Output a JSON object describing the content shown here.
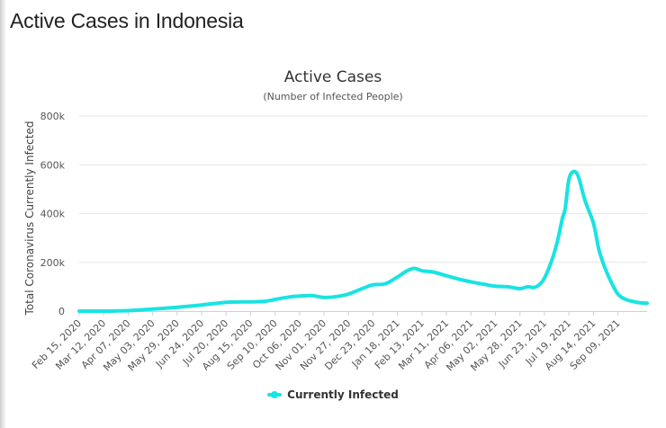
{
  "page": {
    "heading": "Active Cases in Indonesia"
  },
  "colors": {
    "series": "#19e3e3",
    "grid": "#e6e6e6",
    "axis": "#c8d1e0"
  },
  "legend": {
    "label": "Currently Infected",
    "position": "bottom-center"
  },
  "chart_data": {
    "type": "line",
    "title": "Active Cases",
    "subtitle": "(Number of Infected People)",
    "ylabel": "Total Coronavirus Currently Infected",
    "xlabel": "",
    "ylim": [
      0,
      800000
    ],
    "yticks": [
      0,
      200000,
      400000,
      600000,
      800000
    ],
    "ytick_labels": [
      "0",
      "200k",
      "400k",
      "600k",
      "800k"
    ],
    "grid": true,
    "x_range": [
      "2020-02-15",
      "2021-10-10"
    ],
    "x_tick_labels": [
      "Feb 15, 2020",
      "Mar 12, 2020",
      "Apr 07, 2020",
      "May 03, 2020",
      "May 29, 2020",
      "Jun 24, 2020",
      "Jul 20, 2020",
      "Aug 15, 2020",
      "Sep 10, 2020",
      "Oct 06, 2020",
      "Nov 01, 2020",
      "Nov 27, 2020",
      "Dec 23, 2020",
      "Jan 18, 2021",
      "Feb 13, 2021",
      "Mar 11, 2021",
      "Apr 06, 2021",
      "May 02, 2021",
      "May 28, 2021",
      "Jun 23, 2021",
      "Jul 19, 2021",
      "Aug 14, 2021",
      "Sep 09, 2021"
    ],
    "series": [
      {
        "name": "Currently Infected",
        "points": [
          [
            "2020-02-15",
            0
          ],
          [
            "2020-03-12",
            0
          ],
          [
            "2020-04-07",
            2000
          ],
          [
            "2020-05-03",
            8000
          ],
          [
            "2020-05-29",
            16000
          ],
          [
            "2020-06-24",
            25000
          ],
          [
            "2020-07-20",
            36000
          ],
          [
            "2020-08-15",
            38000
          ],
          [
            "2020-08-30",
            40000
          ],
          [
            "2020-09-10",
            48000
          ],
          [
            "2020-09-25",
            58000
          ],
          [
            "2020-10-06",
            62000
          ],
          [
            "2020-10-20",
            63000
          ],
          [
            "2020-11-01",
            56000
          ],
          [
            "2020-11-15",
            60000
          ],
          [
            "2020-11-27",
            70000
          ],
          [
            "2020-12-10",
            90000
          ],
          [
            "2020-12-23",
            108000
          ],
          [
            "2021-01-05",
            112000
          ],
          [
            "2021-01-18",
            140000
          ],
          [
            "2021-01-28",
            165000
          ],
          [
            "2021-02-05",
            175000
          ],
          [
            "2021-02-13",
            165000
          ],
          [
            "2021-02-25",
            160000
          ],
          [
            "2021-03-11",
            145000
          ],
          [
            "2021-03-25",
            130000
          ],
          [
            "2021-04-06",
            120000
          ],
          [
            "2021-04-20",
            110000
          ],
          [
            "2021-05-02",
            102000
          ],
          [
            "2021-05-15",
            100000
          ],
          [
            "2021-05-28",
            92000
          ],
          [
            "2021-06-05",
            100000
          ],
          [
            "2021-06-12",
            97000
          ],
          [
            "2021-06-18",
            110000
          ],
          [
            "2021-06-23",
            135000
          ],
          [
            "2021-07-01",
            210000
          ],
          [
            "2021-07-07",
            290000
          ],
          [
            "2021-07-12",
            380000
          ],
          [
            "2021-07-15",
            420000
          ],
          [
            "2021-07-19",
            540000
          ],
          [
            "2021-07-24",
            572000
          ],
          [
            "2021-07-29",
            552000
          ],
          [
            "2021-08-05",
            455000
          ],
          [
            "2021-08-14",
            360000
          ],
          [
            "2021-08-20",
            250000
          ],
          [
            "2021-08-27",
            170000
          ],
          [
            "2021-09-03",
            110000
          ],
          [
            "2021-09-09",
            70000
          ],
          [
            "2021-09-15",
            52000
          ],
          [
            "2021-09-22",
            42000
          ],
          [
            "2021-10-01",
            35000
          ],
          [
            "2021-10-10",
            32000
          ]
        ]
      }
    ]
  }
}
